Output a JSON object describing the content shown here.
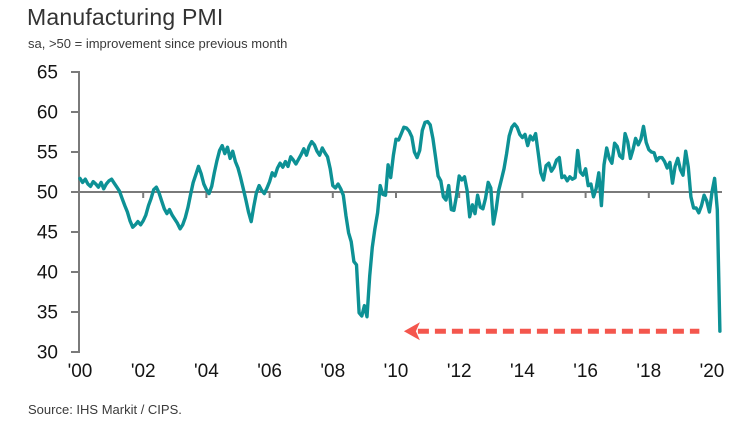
{
  "header": {
    "title": "Manufacturing PMI",
    "subtitle": "sa, >50 = improvement since previous month"
  },
  "footer": {
    "source": "Source: IHS Markit / CIPS."
  },
  "chart_data": {
    "type": "line",
    "title": "Manufacturing PMI",
    "subtitle": "sa, >50 = improvement since previous month",
    "source": "Source: IHS Markit / CIPS.",
    "ylim": [
      30,
      65
    ],
    "y_ticks": [
      65,
      60,
      55,
      50,
      45,
      40,
      35,
      30
    ],
    "baseline_value": 50,
    "x_ticks": [
      {
        "year": 2000,
        "label": "'00"
      },
      {
        "year": 2002,
        "label": "'02"
      },
      {
        "year": 2004,
        "label": "'04"
      },
      {
        "year": 2006,
        "label": "'06"
      },
      {
        "year": 2008,
        "label": "'08"
      },
      {
        "year": 2010,
        "label": "'10"
      },
      {
        "year": 2012,
        "label": "'12"
      },
      {
        "year": 2014,
        "label": "'14"
      },
      {
        "year": 2016,
        "label": "'16"
      },
      {
        "year": 2018,
        "label": "'18"
      },
      {
        "year": 2020,
        "label": "'20"
      }
    ],
    "grid": false,
    "legend": "none",
    "series": [
      {
        "name": "UK Manufacturing PMI (sa, monthly)",
        "start": "2000-01",
        "end": "2020-04",
        "frequency": "monthly",
        "values": [
          51.7,
          51.2,
          51.6,
          51.0,
          50.7,
          51.3,
          51.0,
          50.6,
          51.2,
          50.4,
          51.0,
          51.4,
          51.6,
          51.1,
          50.6,
          50.1,
          49.2,
          48.3,
          47.5,
          46.4,
          45.6,
          45.9,
          46.3,
          45.9,
          46.4,
          47.1,
          48.3,
          49.2,
          50.3,
          50.6,
          49.9,
          48.9,
          47.9,
          47.3,
          47.8,
          47.1,
          46.6,
          46.1,
          45.4,
          45.9,
          46.8,
          48.1,
          49.7,
          51.2,
          52.2,
          53.2,
          52.3,
          51.0,
          50.3,
          49.8,
          50.7,
          52.4,
          53.9,
          55.2,
          55.8,
          54.8,
          55.6,
          54.2,
          55.1,
          53.8,
          53.0,
          51.8,
          50.4,
          49.0,
          47.5,
          46.3,
          48.2,
          49.9,
          50.8,
          50.2,
          49.8,
          50.5,
          51.3,
          52.4,
          52.0,
          53.0,
          53.6,
          53.1,
          53.8,
          53.2,
          54.4,
          54.0,
          53.5,
          54.1,
          54.7,
          55.4,
          54.6,
          55.7,
          56.3,
          55.9,
          55.1,
          54.6,
          55.5,
          54.9,
          54.4,
          52.9,
          50.8,
          50.5,
          51.0,
          50.4,
          49.6,
          47.0,
          44.9,
          43.8,
          41.3,
          40.9,
          34.9,
          34.5,
          35.8,
          34.4,
          39.5,
          43.1,
          45.4,
          47.4,
          50.8,
          49.7,
          49.6,
          53.4,
          51.8,
          54.6,
          56.6,
          56.5,
          57.3,
          58.1,
          58.0,
          57.6,
          56.9,
          55.0,
          54.3,
          55.2,
          57.7,
          58.7,
          58.8,
          58.4,
          56.7,
          54.4,
          52.0,
          51.4,
          49.4,
          49.0,
          50.8,
          47.8,
          47.7,
          49.6,
          52.0,
          51.5,
          51.9,
          50.2,
          46.9,
          48.4,
          47.3,
          49.6,
          48.1,
          47.9,
          49.2,
          51.2,
          50.5,
          46.0,
          47.8,
          50.2,
          51.5,
          52.9,
          54.8,
          57.0,
          58.1,
          58.5,
          58.1,
          57.2,
          56.8,
          57.2,
          55.8,
          57.0,
          56.5,
          57.3,
          54.9,
          52.4,
          51.5,
          53.3,
          53.6,
          52.6,
          53.1,
          54.0,
          54.3,
          51.8,
          52.0,
          51.4,
          51.9,
          51.6,
          51.8,
          55.2,
          52.5,
          52.1,
          52.9,
          50.8,
          51.0,
          49.4,
          50.4,
          52.4,
          48.3,
          53.4,
          55.5,
          54.2,
          53.6,
          56.1,
          55.7,
          54.5,
          54.2,
          57.3,
          56.3,
          54.2,
          55.3,
          56.7,
          55.9,
          56.6,
          58.2,
          56.2,
          55.3,
          55.0,
          54.9,
          53.9,
          54.3,
          54.3,
          53.8,
          53.0,
          53.7,
          51.1,
          53.2,
          54.2,
          52.8,
          52.1,
          55.1,
          53.1,
          49.4,
          48.0,
          48.0,
          47.4,
          48.3,
          49.6,
          48.9,
          47.5,
          50.0,
          51.7,
          47.8,
          32.6
        ]
      }
    ],
    "annotation": {
      "type": "dashed-arrow-left",
      "meaning": "points back from the April 2020 record low",
      "y_value": 32.6,
      "tail_year": 2019.6,
      "tip_year": 2010.25
    },
    "colors": {
      "line": "#0d9195",
      "axis": "#7a7a7a",
      "annotation": "#f4564d",
      "tick_text": "#141414"
    }
  }
}
